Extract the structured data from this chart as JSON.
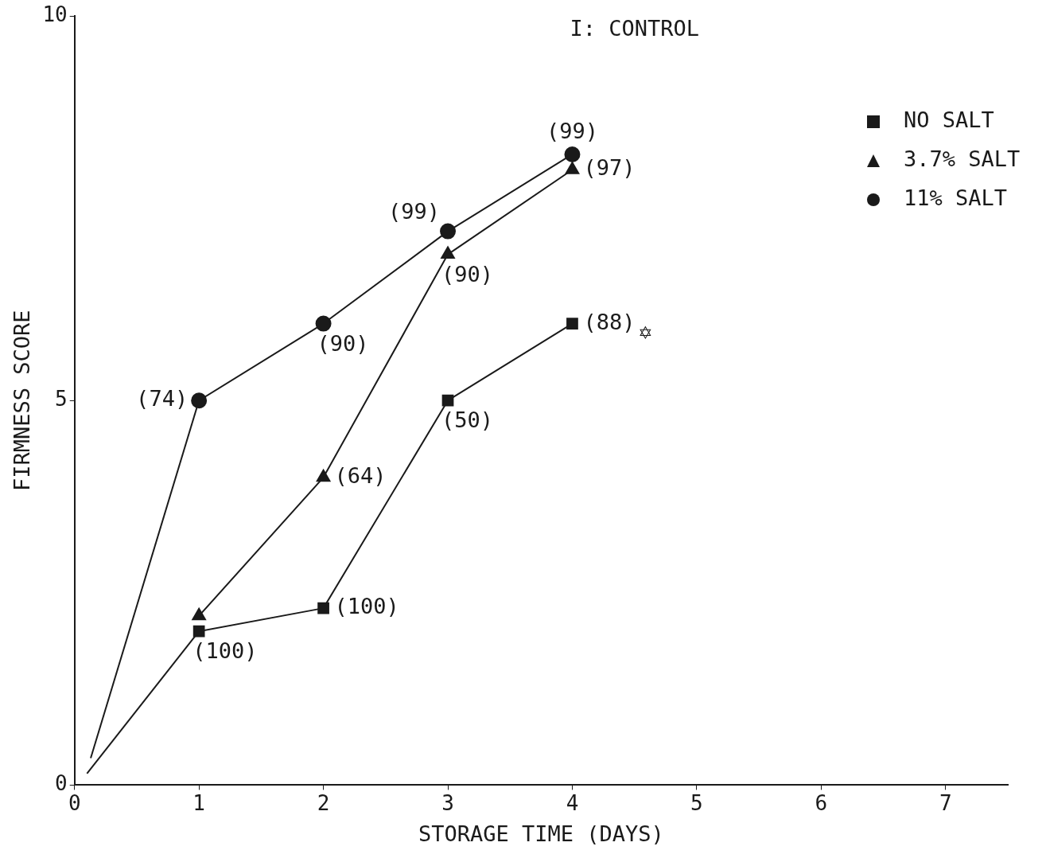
{
  "chart_data": {
    "type": "line",
    "title": "I: CONTROL",
    "xlabel": "STORAGE TIME (DAYS)",
    "ylabel": "FIRMNESS SCORE",
    "xlim": [
      0,
      7.5
    ],
    "xticks": [
      0,
      1,
      2,
      3,
      4,
      5,
      6,
      7
    ],
    "ylim": [
      0,
      10
    ],
    "yticks": [
      0,
      5,
      10
    ],
    "grid": false,
    "legend": "top right",
    "series": [
      {
        "name": "NO SALT",
        "color": "#1a1a1a",
        "marker": "square",
        "x": [
          1,
          2,
          3,
          4
        ],
        "values": [
          2.0,
          2.3,
          5.0,
          6.0
        ]
      },
      {
        "name": "3.7% SALT",
        "color": "#1a1a1a",
        "marker": "triangle",
        "x": [
          1,
          2,
          3,
          4
        ],
        "values": [
          2.2,
          4.0,
          6.9,
          8.0
        ]
      },
      {
        "name": "11% SALT",
        "color": "#1a1a1a",
        "marker": "circle",
        "x": [
          1,
          2,
          3,
          4
        ],
        "values": [
          5.0,
          6.0,
          7.2,
          8.2
        ]
      },
      {
        "color": "#1a1a1a",
        "marker": "none",
        "x": [
          0.1,
          1
        ],
        "values": [
          0.15,
          2.0
        ]
      },
      {
        "color": "#1a1a1a",
        "marker": "none",
        "x": [
          0.13,
          1
        ],
        "values": [
          0.35,
          5.0
        ]
      }
    ],
    "annotations": [
      {
        "text": "(100)",
        "x": 1,
        "y": 2.0
      },
      {
        "text": "(100)",
        "x": 2,
        "y": 2.3
      },
      {
        "text": "(50)",
        "x": 3,
        "y": 5.0
      },
      {
        "text": "(88)",
        "x": 4,
        "y": 6.0
      },
      {
        "text": "(64)",
        "x": 2,
        "y": 4.0
      },
      {
        "text": "(90)",
        "x": 3,
        "y": 6.9
      },
      {
        "text": "(97)",
        "x": 4,
        "y": 8.0
      },
      {
        "text": "(74)",
        "x": 1,
        "y": 5.0
      },
      {
        "text": "(90)",
        "x": 2,
        "y": 6.0
      },
      {
        "text": "(99)",
        "x": 3,
        "y": 7.2
      },
      {
        "text": "(99)",
        "x": 4,
        "y": 8.2
      },
      "✡"
    ]
  }
}
